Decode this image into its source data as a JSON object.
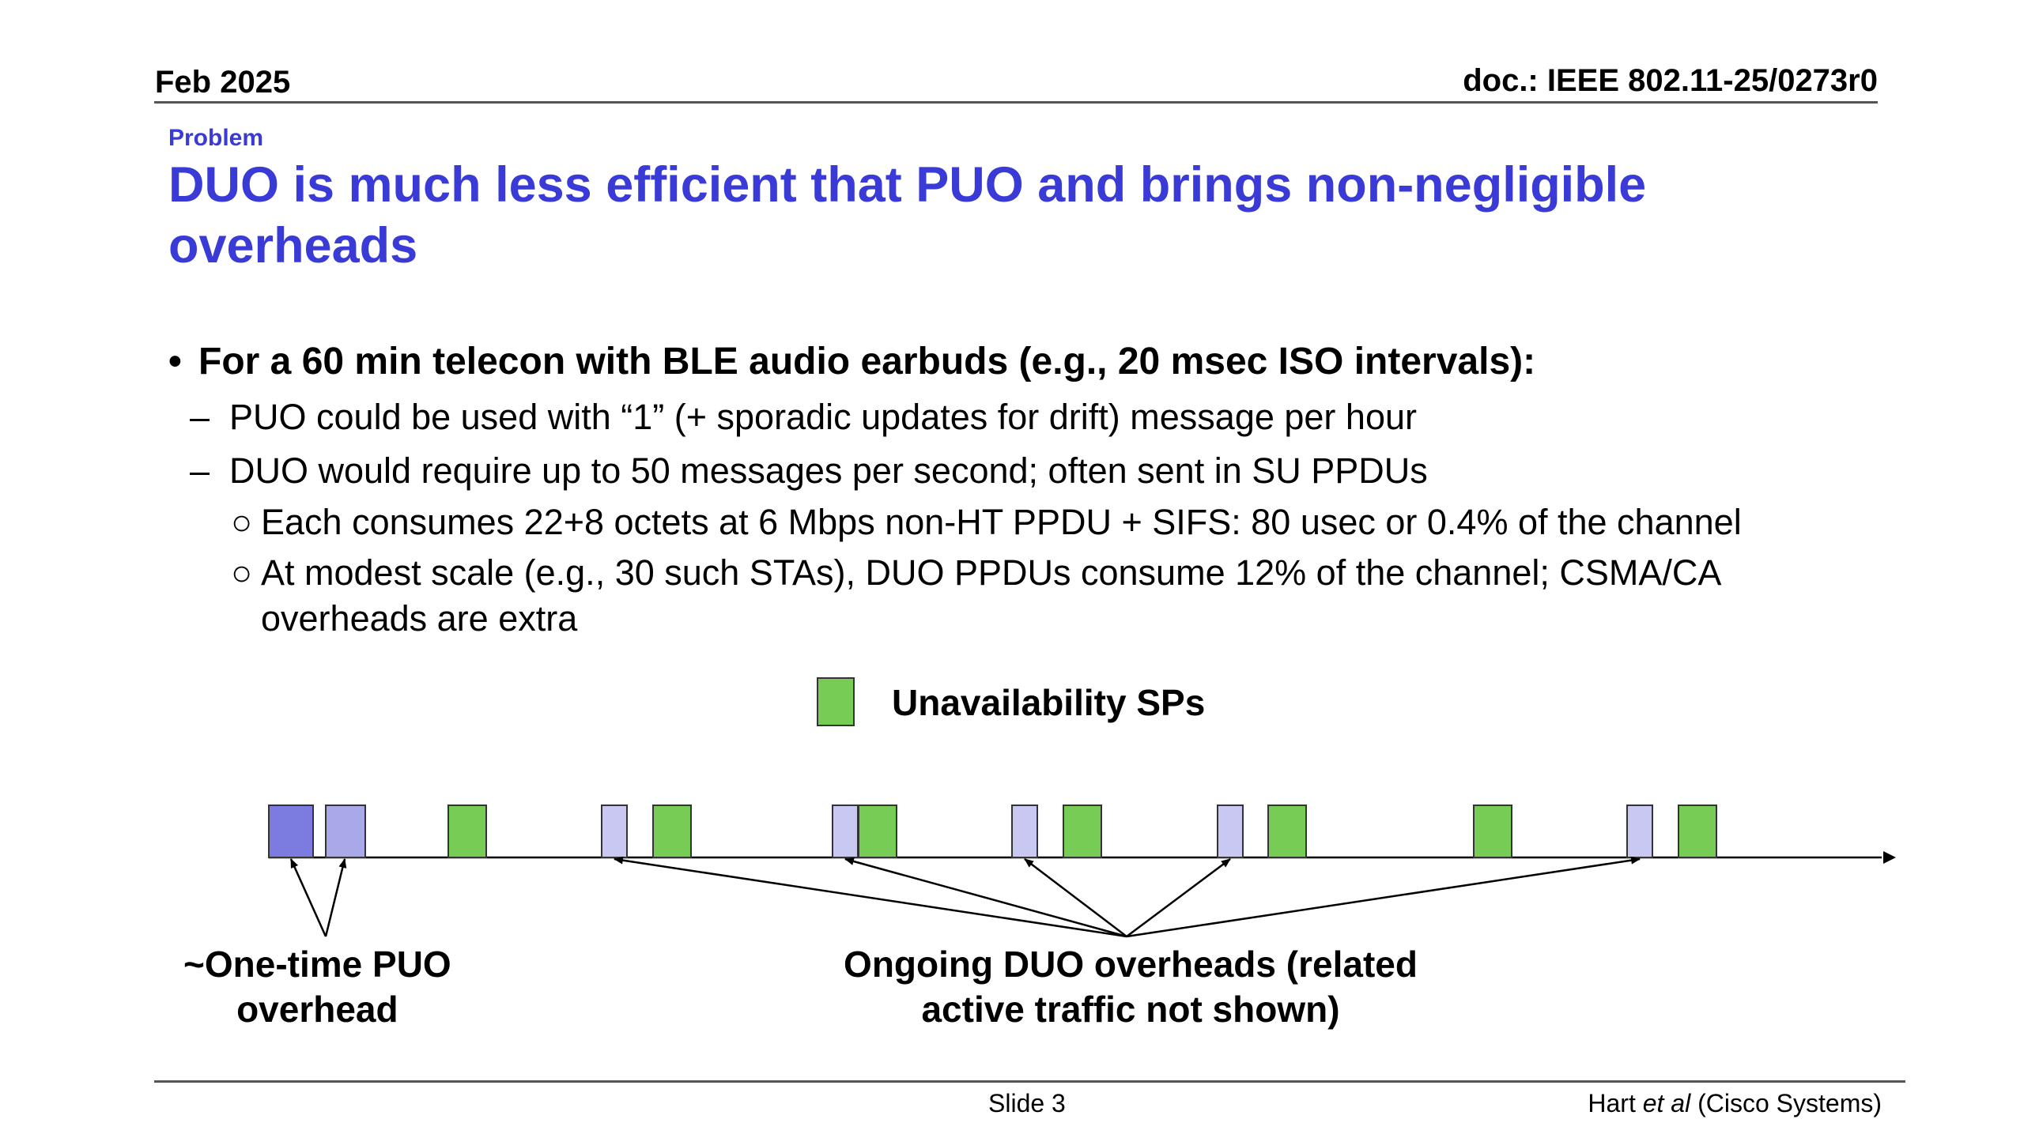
{
  "header": {
    "date": "Feb 2025",
    "doc": "doc.: IEEE 802.11-25/0273r0"
  },
  "kicker": "Problem",
  "title": "DUO is much less efficient that PUO and brings non-negligible overheads",
  "bullets": {
    "main": "For a 60 min telecon with BLE audio earbuds (e.g., 20 msec ISO intervals):",
    "sub1": "PUO could be used with “1” (+ sporadic updates for drift) message per hour",
    "sub2": "DUO would require up to 50 messages per second; often sent in SU PPDUs",
    "sub2_items": [
      "Each consumes 22+8 octets at 6 Mbps non-HT PPDU + SIFS: 80 usec or 0.4% of the channel",
      "At modest scale (e.g., 30 such STAs), DUO PPDUs consume 12% of the  channel; CSMA/CA",
      "overheads are extra"
    ]
  },
  "legend": {
    "label": "Unavailability SPs",
    "color": "#77cc55"
  },
  "diagram": {
    "puo_color": "#7b7be0",
    "duo_color": "#c8c8f2",
    "sp_color": "#77cc55",
    "caption_puo_line1": "~One-time PUO",
    "caption_puo_line2": "overhead",
    "caption_duo_line1": "Ongoing DUO overheads (related",
    "caption_duo_line2": "active traffic not shown)"
  },
  "footer": {
    "slide": "Slide 3",
    "author_prefix": "Hart ",
    "author_italic": "et al",
    "author_suffix": " (Cisco Systems)"
  }
}
